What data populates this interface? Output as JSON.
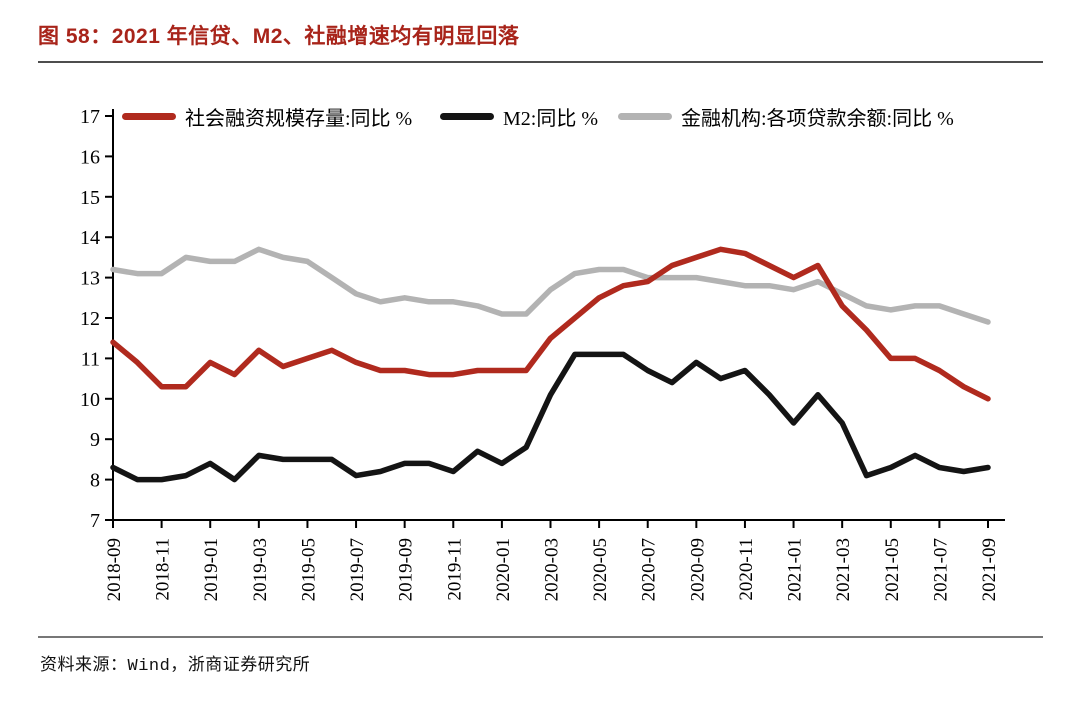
{
  "figure": {
    "title": "图 58：2021 年信贷、M2、社融增速均有明显回落",
    "source": "资料来源：Wind，浙商证券研究所"
  },
  "colors": {
    "title_red": "#a8241a",
    "rule_dark": "#4d4d4d",
    "rule_light": "#777777",
    "axis": "#000000",
    "tsf": "#b02a1e",
    "m2": "#141414",
    "loans": "#b3b3b3"
  },
  "chart_data": {
    "type": "line",
    "x": [
      "2018-09",
      "2018-10",
      "2018-11",
      "2018-12",
      "2019-01",
      "2019-02",
      "2019-03",
      "2019-04",
      "2019-05",
      "2019-06",
      "2019-07",
      "2019-08",
      "2019-09",
      "2019-10",
      "2019-11",
      "2019-12",
      "2020-01",
      "2020-02",
      "2020-03",
      "2020-04",
      "2020-05",
      "2020-06",
      "2020-07",
      "2020-08",
      "2020-09",
      "2020-10",
      "2020-11",
      "2020-12",
      "2021-01",
      "2021-02",
      "2021-03",
      "2021-04",
      "2021-05",
      "2021-06",
      "2021-07",
      "2021-08",
      "2021-09"
    ],
    "x_tick_labels": [
      "2018-09",
      "2018-11",
      "2019-01",
      "2019-03",
      "2019-05",
      "2019-07",
      "2019-09",
      "2019-11",
      "2020-01",
      "2020-03",
      "2020-05",
      "2020-07",
      "2020-09",
      "2020-11",
      "2021-01",
      "2021-03",
      "2021-05",
      "2021-07",
      "2021-09"
    ],
    "series": [
      {
        "name": "社会融资规模存量:同比 %",
        "color_key": "tsf",
        "values": [
          11.4,
          10.9,
          10.3,
          10.3,
          10.9,
          10.6,
          11.2,
          10.8,
          11.0,
          11.2,
          10.9,
          10.7,
          10.7,
          10.6,
          10.6,
          10.7,
          10.7,
          10.7,
          11.5,
          12.0,
          12.5,
          12.8,
          12.9,
          13.3,
          13.5,
          13.7,
          13.6,
          13.3,
          13.0,
          13.3,
          12.3,
          11.7,
          11.0,
          11.0,
          10.7,
          10.3,
          10.0
        ]
      },
      {
        "name": "M2:同比 %",
        "color_key": "m2",
        "values": [
          8.3,
          8.0,
          8.0,
          8.1,
          8.4,
          8.0,
          8.6,
          8.5,
          8.5,
          8.5,
          8.1,
          8.2,
          8.4,
          8.4,
          8.2,
          8.7,
          8.4,
          8.8,
          10.1,
          11.1,
          11.1,
          11.1,
          10.7,
          10.4,
          10.9,
          10.5,
          10.7,
          10.1,
          9.4,
          10.1,
          9.4,
          8.1,
          8.3,
          8.6,
          8.3,
          8.2,
          8.3
        ]
      },
      {
        "name": "金融机构:各项贷款余额:同比 %",
        "color_key": "loans",
        "values": [
          13.2,
          13.1,
          13.1,
          13.5,
          13.4,
          13.4,
          13.7,
          13.5,
          13.4,
          13.0,
          12.6,
          12.4,
          12.5,
          12.4,
          12.4,
          12.3,
          12.1,
          12.1,
          12.7,
          13.1,
          13.2,
          13.2,
          13.0,
          13.0,
          13.0,
          12.9,
          12.8,
          12.8,
          12.7,
          12.9,
          12.6,
          12.3,
          12.2,
          12.3,
          12.3,
          12.1,
          11.9
        ]
      }
    ],
    "ylim": [
      7,
      17
    ],
    "y_ticks": [
      7,
      8,
      9,
      10,
      11,
      12,
      13,
      14,
      15,
      16,
      17
    ],
    "grid": false,
    "legend_position": "top"
  }
}
